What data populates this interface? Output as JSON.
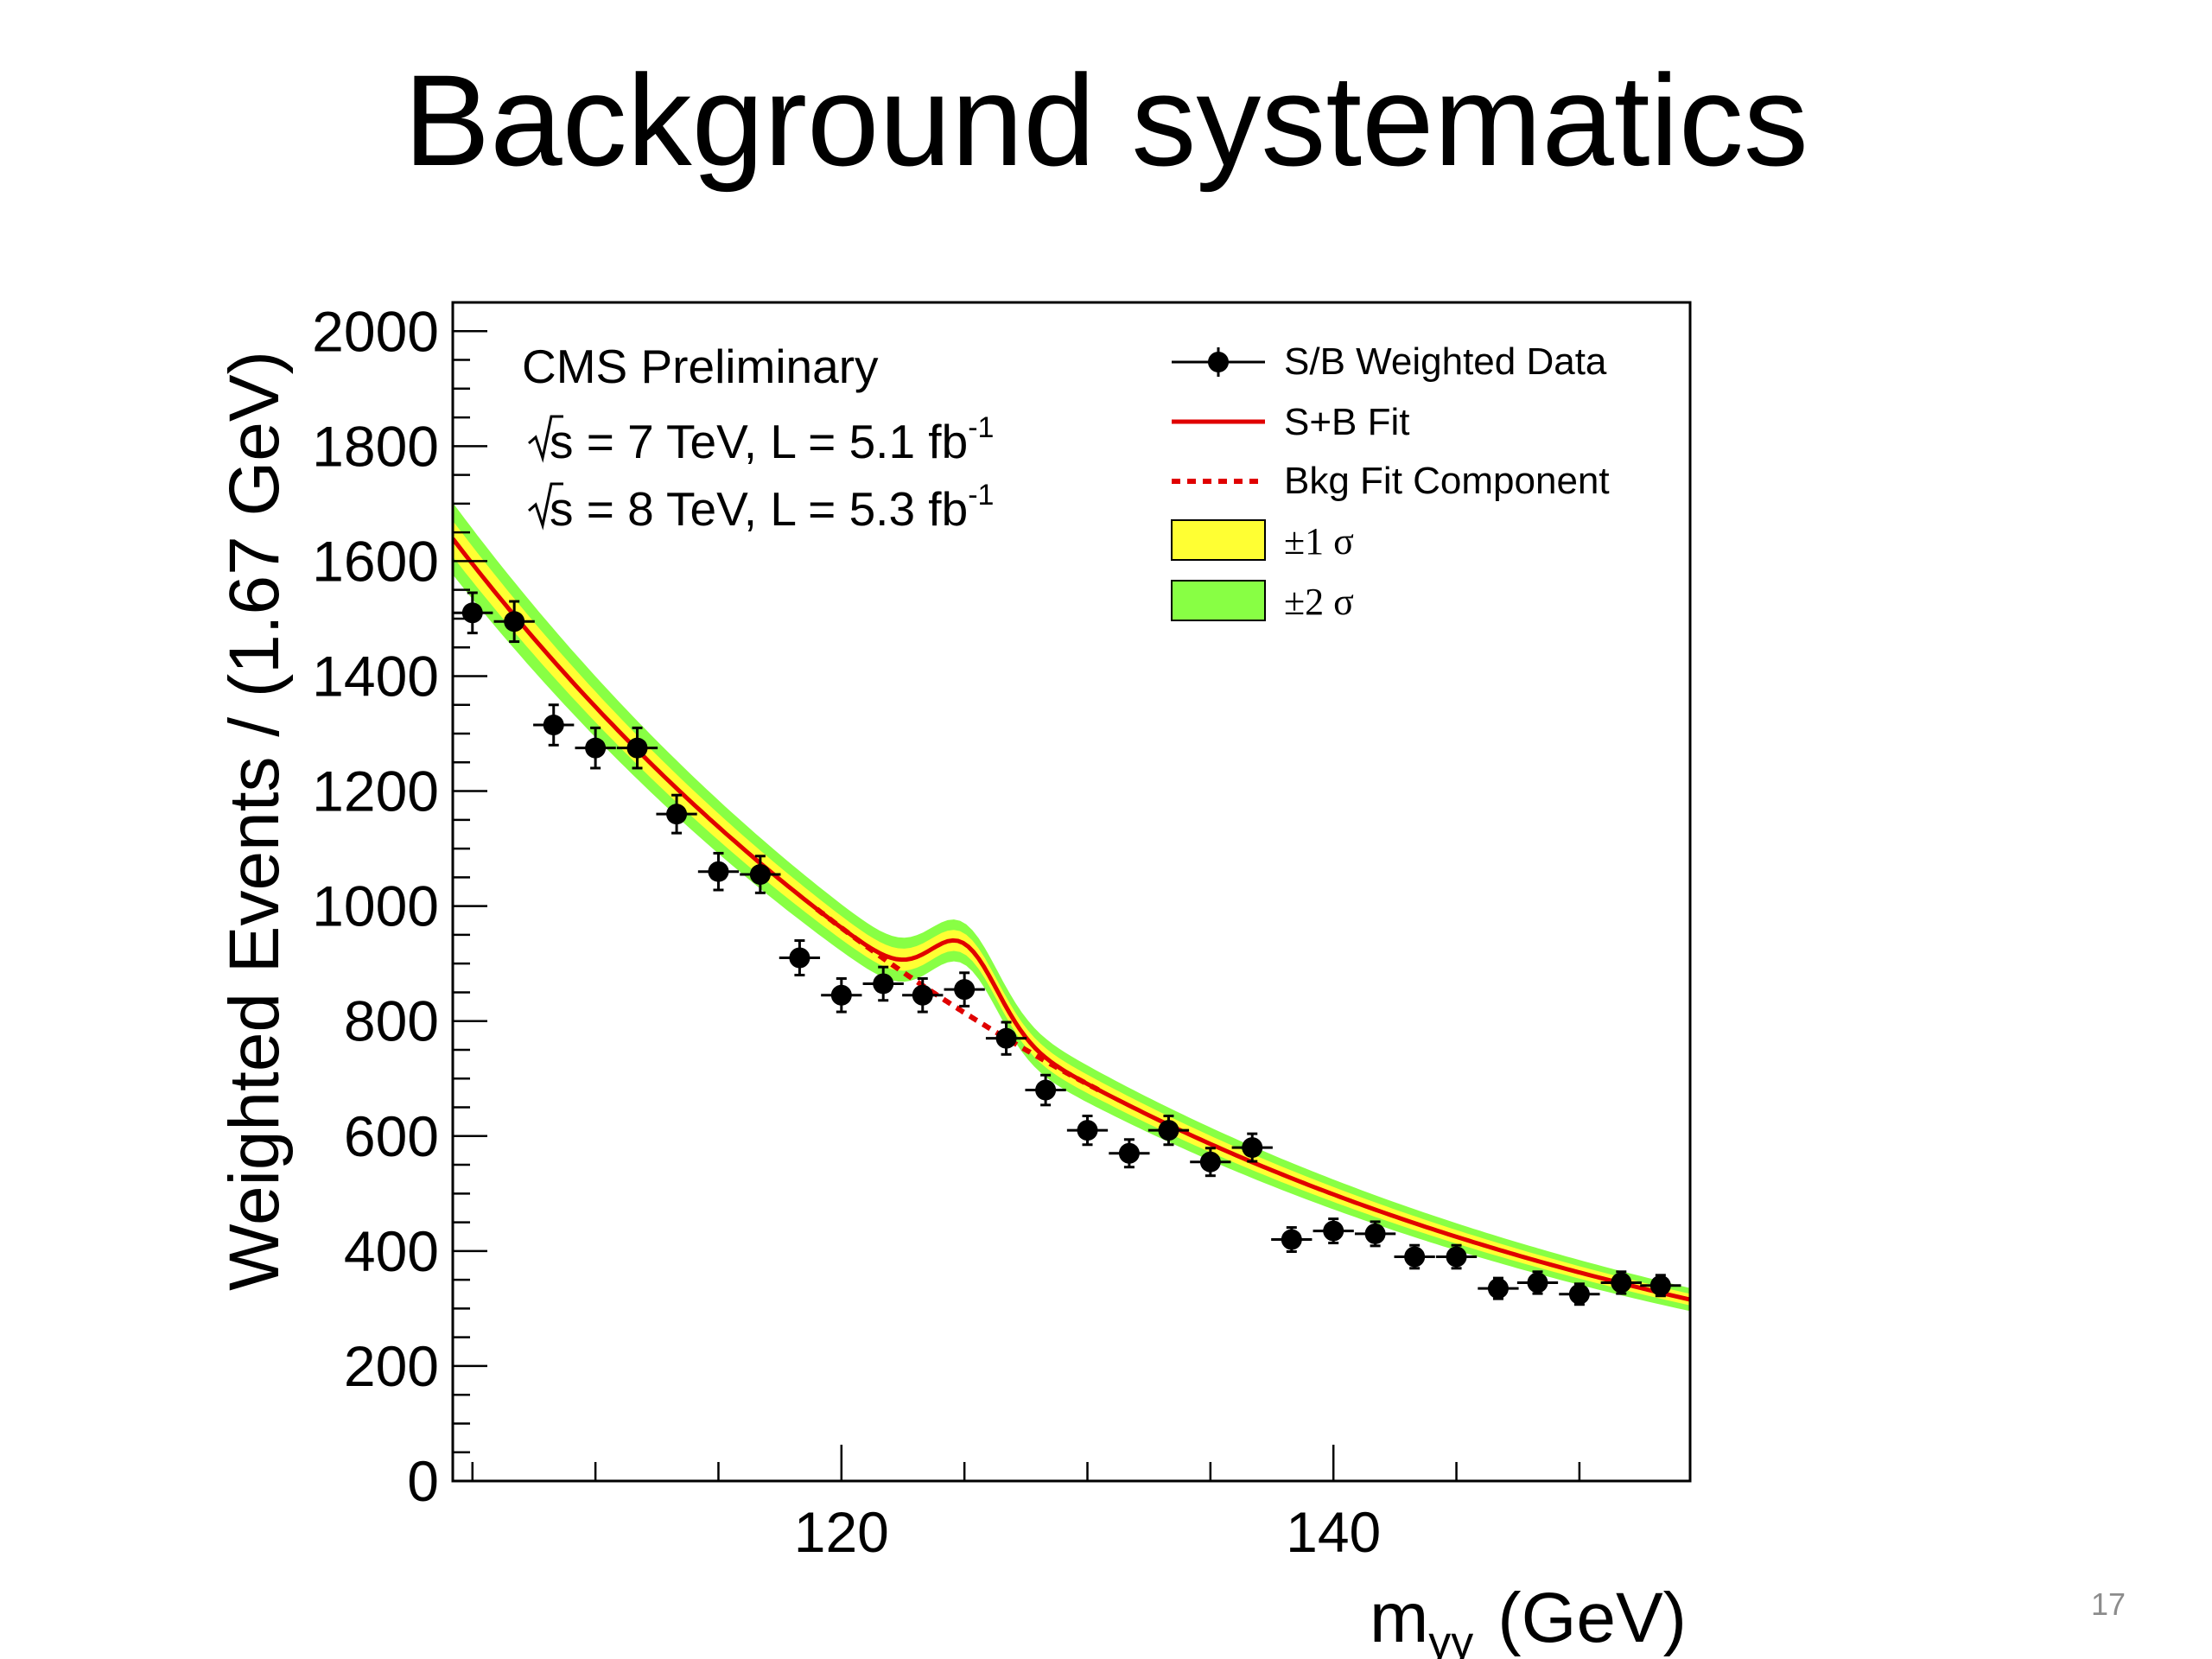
{
  "slide": {
    "title": "Background systematics",
    "page_number": "17"
  },
  "chart_data": {
    "type": "scatter",
    "title": "",
    "xlabel_main": "m",
    "xlabel_sub": "γγ",
    "xlabel_unit": "(GeV)",
    "ylabel": "Weighted Events / (1.67 GeV)",
    "xlim": [
      104.2,
      154.5
    ],
    "ylim": [
      0,
      2050
    ],
    "x_ticks": [
      120,
      140
    ],
    "y_ticks": [
      0,
      200,
      400,
      600,
      800,
      1000,
      1200,
      1400,
      1600,
      1800,
      2000
    ],
    "annotations": {
      "experiment": "CMS Preliminary",
      "line1_prefix": "s = 7 TeV, L = 5.1 fb",
      "line1_sup": "-1",
      "line2_prefix": "s = 8 TeV, L = 5.3 fb",
      "line2_sup": "-1"
    },
    "legend": {
      "placement": "top-right",
      "entries": [
        {
          "label": "S/B Weighted Data",
          "style": "marker"
        },
        {
          "label": "S+B Fit",
          "style": "solid-line"
        },
        {
          "label": "Bkg Fit Component",
          "style": "dashed-line"
        },
        {
          "label": "±1 σ",
          "style": "yellow-box"
        },
        {
          "label": "±2 σ",
          "style": "green-box"
        }
      ]
    },
    "colors": {
      "fit": "#e00000",
      "band1": "#ffff33",
      "band2": "#88ff44",
      "marker": "#000000"
    },
    "series": [
      {
        "name": "S/B Weighted Data",
        "x": [
          105.0,
          106.7,
          108.3,
          110.0,
          111.7,
          113.3,
          115.0,
          116.7,
          118.3,
          120.0,
          121.7,
          123.3,
          125.0,
          126.7,
          128.3,
          130.0,
          131.7,
          133.3,
          135.0,
          136.7,
          138.3,
          140.0,
          141.7,
          143.3,
          145.0,
          146.7,
          148.3,
          150.0,
          151.7,
          153.3
        ],
        "y": [
          1510,
          1495,
          1315,
          1275,
          1275,
          1160,
          1060,
          1055,
          910,
          845,
          865,
          845,
          855,
          770,
          680,
          610,
          570,
          610,
          555,
          580,
          420,
          435,
          430,
          390,
          390,
          335,
          345,
          325,
          345,
          340
        ],
        "yerr": [
          35,
          35,
          35,
          35,
          35,
          33,
          32,
          32,
          30,
          29,
          29,
          29,
          29,
          28,
          26,
          25,
          24,
          25,
          24,
          24,
          21,
          21,
          21,
          20,
          20,
          18,
          19,
          18,
          19,
          18
        ],
        "xerr": 0.83
      }
    ]
  }
}
